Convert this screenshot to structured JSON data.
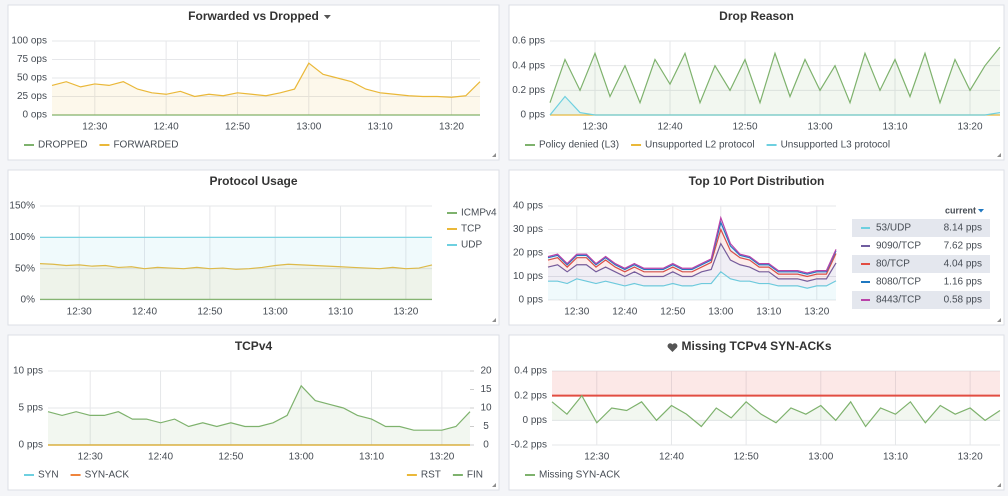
{
  "chart_data": [
    {
      "type": "line",
      "title": "Forwarded vs Dropped",
      "x": [
        "12:24",
        "12:26",
        "12:28",
        "12:30",
        "12:32",
        "12:34",
        "12:36",
        "12:38",
        "12:40",
        "12:42",
        "12:44",
        "12:46",
        "12:48",
        "12:50",
        "12:52",
        "12:54",
        "12:56",
        "12:58",
        "13:00",
        "13:02",
        "13:04",
        "13:06",
        "13:08",
        "13:10",
        "13:12",
        "13:14",
        "13:16",
        "13:18",
        "13:20",
        "13:22",
        "13:24"
      ],
      "xticks": [
        "12:30",
        "12:40",
        "12:50",
        "13:00",
        "13:10",
        "13:20"
      ],
      "ylim": [
        0,
        100
      ],
      "yticks": [
        {
          "value": 0,
          "label": "0 ops"
        },
        {
          "value": 25,
          "label": "25 ops"
        },
        {
          "value": 50,
          "label": "50 ops"
        },
        {
          "value": 75,
          "label": "75 ops"
        },
        {
          "value": 100,
          "label": "100 ops"
        }
      ],
      "grid": true,
      "legend": "bottom",
      "series": [
        {
          "name": "DROPPED",
          "color": "#7eb26d",
          "values": [
            0,
            0,
            0,
            0,
            0,
            0,
            0,
            0,
            0,
            0,
            0,
            0,
            0,
            0,
            0,
            0,
            0,
            0,
            0,
            0,
            0,
            0,
            0,
            0,
            0,
            0,
            0,
            0,
            0,
            0,
            0
          ]
        },
        {
          "name": "FORWARDED",
          "color": "#eab839",
          "values": [
            40,
            45,
            38,
            42,
            40,
            45,
            35,
            30,
            28,
            32,
            25,
            28,
            26,
            30,
            28,
            26,
            30,
            35,
            70,
            55,
            50,
            45,
            35,
            30,
            28,
            26,
            25,
            25,
            24,
            26,
            45
          ]
        }
      ]
    },
    {
      "type": "line",
      "title": "Drop Reason",
      "x": [
        "12:24",
        "12:26",
        "12:28",
        "12:30",
        "12:32",
        "12:34",
        "12:36",
        "12:38",
        "12:40",
        "12:42",
        "12:44",
        "12:46",
        "12:48",
        "12:50",
        "12:52",
        "12:54",
        "12:56",
        "12:58",
        "13:00",
        "13:02",
        "13:04",
        "13:06",
        "13:08",
        "13:10",
        "13:12",
        "13:14",
        "13:16",
        "13:18",
        "13:20",
        "13:22",
        "13:24"
      ],
      "xticks": [
        "12:30",
        "12:40",
        "12:50",
        "13:00",
        "13:10",
        "13:20"
      ],
      "ylim": [
        0,
        0.6
      ],
      "yticks": [
        {
          "value": 0,
          "label": "0 pps"
        },
        {
          "value": 0.2,
          "label": "0.2 pps"
        },
        {
          "value": 0.4,
          "label": "0.4 pps"
        },
        {
          "value": 0.6,
          "label": "0.6 pps"
        }
      ],
      "grid": true,
      "legend": "bottom",
      "series": [
        {
          "name": "Policy denied (L3)",
          "color": "#7eb26d",
          "values": [
            0.1,
            0.45,
            0.2,
            0.5,
            0.15,
            0.4,
            0.1,
            0.45,
            0.25,
            0.5,
            0.1,
            0.4,
            0.2,
            0.45,
            0.1,
            0.5,
            0.15,
            0.45,
            0.2,
            0.4,
            0.1,
            0.5,
            0.2,
            0.45,
            0.15,
            0.5,
            0.1,
            0.45,
            0.2,
            0.4,
            0.55
          ]
        },
        {
          "name": "Unsupported L2 protocol",
          "color": "#eab839",
          "values": [
            0,
            0,
            0,
            0,
            0,
            0,
            0,
            0,
            0,
            0,
            0,
            0,
            0,
            0,
            0,
            0,
            0,
            0,
            0,
            0,
            0,
            0,
            0,
            0,
            0,
            0,
            0,
            0,
            0,
            0,
            0
          ]
        },
        {
          "name": "Unsupported L3 protocol",
          "color": "#6ed0e0",
          "values": [
            0,
            0.15,
            0.02,
            0,
            0,
            0,
            0,
            0,
            0,
            0,
            0,
            0,
            0,
            0,
            0,
            0,
            0,
            0,
            0,
            0,
            0,
            0,
            0,
            0,
            0,
            0,
            0,
            0,
            0,
            0,
            0.02
          ]
        }
      ]
    },
    {
      "type": "line",
      "title": "Protocol Usage",
      "x": [
        "12:24",
        "12:26",
        "12:28",
        "12:30",
        "12:32",
        "12:34",
        "12:36",
        "12:38",
        "12:40",
        "12:42",
        "12:44",
        "12:46",
        "12:48",
        "12:50",
        "12:52",
        "12:54",
        "12:56",
        "12:58",
        "13:00",
        "13:02",
        "13:04",
        "13:06",
        "13:08",
        "13:10",
        "13:12",
        "13:14",
        "13:16",
        "13:18",
        "13:20",
        "13:22",
        "13:24"
      ],
      "xticks": [
        "12:30",
        "12:40",
        "12:50",
        "13:00",
        "13:10",
        "13:20"
      ],
      "ylim": [
        0,
        150
      ],
      "yticks": [
        {
          "value": 0,
          "label": "0%"
        },
        {
          "value": 50,
          "label": "50%"
        },
        {
          "value": 100,
          "label": "100%"
        },
        {
          "value": 150,
          "label": "150%"
        }
      ],
      "grid": true,
      "legend": "right",
      "series": [
        {
          "name": "ICMPv4",
          "color": "#7eb26d",
          "values": [
            1,
            1,
            1,
            1,
            1,
            1,
            1,
            1,
            1,
            1,
            1,
            1,
            1,
            1,
            1,
            1,
            1,
            1,
            1,
            1,
            1,
            1,
            1,
            1,
            1,
            1,
            1,
            1,
            1,
            1,
            1
          ]
        },
        {
          "name": "TCP",
          "color": "#eab839",
          "values": [
            58,
            57,
            55,
            56,
            54,
            55,
            52,
            53,
            50,
            52,
            51,
            50,
            52,
            50,
            51,
            49,
            50,
            52,
            55,
            57,
            56,
            55,
            54,
            53,
            52,
            51,
            50,
            52,
            50,
            51,
            56
          ]
        },
        {
          "name": "UDP",
          "color": "#6ed0e0",
          "values": [
            100,
            100,
            100,
            100,
            100,
            100,
            100,
            100,
            100,
            100,
            100,
            100,
            100,
            100,
            100,
            100,
            100,
            100,
            100,
            100,
            100,
            100,
            100,
            100,
            100,
            100,
            100,
            100,
            100,
            100,
            100
          ]
        }
      ]
    },
    {
      "type": "line",
      "title": "Top 10 Port Distribution",
      "stacked": true,
      "x": [
        "12:24",
        "12:26",
        "12:28",
        "12:30",
        "12:32",
        "12:34",
        "12:36",
        "12:38",
        "12:40",
        "12:42",
        "12:44",
        "12:46",
        "12:48",
        "12:50",
        "12:52",
        "12:54",
        "12:56",
        "12:58",
        "13:00",
        "13:02",
        "13:04",
        "13:06",
        "13:08",
        "13:10",
        "13:12",
        "13:14",
        "13:16",
        "13:18",
        "13:20",
        "13:22",
        "13:24"
      ],
      "xticks": [
        "12:30",
        "12:40",
        "12:50",
        "13:00",
        "13:10",
        "13:20"
      ],
      "ylim": [
        0,
        40
      ],
      "yticks": [
        {
          "value": 0,
          "label": "0 pps"
        },
        {
          "value": 10,
          "label": "10 pps"
        },
        {
          "value": 20,
          "label": "20 pps"
        },
        {
          "value": 30,
          "label": "30 pps"
        },
        {
          "value": 40,
          "label": "40 pps"
        }
      ],
      "grid": true,
      "legend": "table",
      "legend_header": "current",
      "series": [
        {
          "name": "53/UDP",
          "color": "#6ed0e0",
          "current_label": "8.14 pps",
          "values": [
            8,
            8,
            7,
            9,
            8,
            7,
            8,
            7,
            6,
            7,
            6,
            6,
            6,
            7,
            6,
            6,
            7,
            7,
            12,
            9,
            8,
            8,
            7,
            7,
            6,
            6,
            6,
            5,
            6,
            6,
            8.14
          ]
        },
        {
          "name": "9090/TCP",
          "color": "#705da0",
          "current_label": "7.62 pps",
          "values": [
            6,
            7,
            5,
            6,
            7,
            5,
            6,
            5,
            4,
            5,
            4,
            4,
            4,
            5,
            4,
            4,
            5,
            6,
            12,
            8,
            7,
            6,
            5,
            5,
            3,
            3,
            3,
            3,
            3,
            3,
            7.62
          ]
        },
        {
          "name": "80/TCP",
          "color": "#e24d42",
          "current_label": "4.04 pps",
          "values": [
            3,
            3,
            2,
            3,
            3,
            2,
            3,
            2,
            2,
            2,
            2,
            2,
            2,
            2,
            2,
            2,
            2,
            3,
            6,
            4,
            3,
            3,
            2,
            2,
            2,
            2,
            2,
            2,
            2,
            2,
            4.04
          ]
        },
        {
          "name": "8080/TCP",
          "color": "#1f78c1",
          "current_label": "1.16 pps",
          "values": [
            1,
            1,
            1,
            1,
            1,
            1,
            1,
            1,
            1,
            1,
            1,
            1,
            1,
            1,
            1,
            1,
            1,
            1,
            3,
            2,
            1,
            1,
            1,
            1,
            1,
            1,
            1,
            1,
            1,
            1,
            1.16
          ]
        },
        {
          "name": "8443/TCP",
          "color": "#ba43a9",
          "current_label": "0.58 pps",
          "values": [
            0.5,
            0.5,
            0.5,
            0.5,
            0.5,
            0.5,
            0.5,
            0.5,
            0.5,
            0.5,
            0.5,
            0.5,
            0.5,
            0.5,
            0.5,
            0.5,
            0.5,
            0.5,
            2,
            1,
            0.5,
            0.5,
            0.5,
            0.5,
            0.5,
            0.5,
            0.5,
            0.5,
            0.5,
            0.5,
            0.58
          ]
        }
      ]
    },
    {
      "type": "line",
      "title": "TCPv4",
      "x": [
        "12:24",
        "12:26",
        "12:28",
        "12:30",
        "12:32",
        "12:34",
        "12:36",
        "12:38",
        "12:40",
        "12:42",
        "12:44",
        "12:46",
        "12:48",
        "12:50",
        "12:52",
        "12:54",
        "12:56",
        "12:58",
        "13:00",
        "13:02",
        "13:04",
        "13:06",
        "13:08",
        "13:10",
        "13:12",
        "13:14",
        "13:16",
        "13:18",
        "13:20",
        "13:22",
        "13:24"
      ],
      "xticks": [
        "12:30",
        "12:40",
        "12:50",
        "13:00",
        "13:10",
        "13:20"
      ],
      "ylim": [
        0,
        10
      ],
      "yticks": [
        {
          "value": 0,
          "label": "0 pps"
        },
        {
          "value": 5,
          "label": "5 pps"
        },
        {
          "value": 10,
          "label": "10 pps"
        }
      ],
      "y2lim": [
        0,
        20
      ],
      "y2ticks": [
        0,
        5,
        10,
        15,
        20
      ],
      "grid": true,
      "legend": "bottom",
      "series": [
        {
          "name": "SYN",
          "color": "#6ed0e0",
          "values": [
            0,
            0,
            0,
            0,
            0,
            0,
            0,
            0,
            0,
            0,
            0,
            0,
            0,
            0,
            0,
            0,
            0,
            0,
            0,
            0,
            0,
            0,
            0,
            0,
            0,
            0,
            0,
            0,
            0,
            0,
            0
          ]
        },
        {
          "name": "SYN-ACK",
          "color": "#ef843c",
          "values": [
            0,
            0,
            0,
            0,
            0,
            0,
            0,
            0,
            0,
            0,
            0,
            0,
            0,
            0,
            0,
            0,
            0,
            0,
            0,
            0,
            0,
            0,
            0,
            0,
            0,
            0,
            0,
            0,
            0,
            0,
            0
          ]
        },
        {
          "name": "RST",
          "color": "#eab839",
          "axis": "y2",
          "values": [
            0,
            0,
            0,
            0,
            0,
            0,
            0,
            0,
            0,
            0,
            0,
            0,
            0,
            0,
            0,
            0,
            0,
            0,
            0,
            0,
            0,
            0,
            0,
            0,
            0,
            0,
            0,
            0,
            0,
            0,
            0
          ]
        },
        {
          "name": "FIN",
          "color": "#7eb26d",
          "axis": "y2",
          "values": [
            9,
            8,
            9,
            8,
            8,
            9,
            7,
            7,
            6,
            7,
            5,
            6,
            5,
            6,
            5,
            5,
            6,
            8,
            16,
            12,
            11,
            10,
            8,
            7,
            5,
            5,
            4,
            4,
            4,
            5,
            9
          ]
        }
      ]
    },
    {
      "type": "line",
      "title": "Missing TCPv4 SYN-ACKs",
      "x": [
        "12:24",
        "12:26",
        "12:28",
        "12:30",
        "12:32",
        "12:34",
        "12:36",
        "12:38",
        "12:40",
        "12:42",
        "12:44",
        "12:46",
        "12:48",
        "12:50",
        "12:52",
        "12:54",
        "12:56",
        "12:58",
        "13:00",
        "13:02",
        "13:04",
        "13:06",
        "13:08",
        "13:10",
        "13:12",
        "13:14",
        "13:16",
        "13:18",
        "13:20",
        "13:22",
        "13:24"
      ],
      "xticks": [
        "12:30",
        "12:40",
        "12:50",
        "13:00",
        "13:10",
        "13:20"
      ],
      "ylim": [
        -0.2,
        0.4
      ],
      "yticks": [
        {
          "value": -0.2,
          "label": "-0.2 pps"
        },
        {
          "value": 0,
          "label": "0 pps"
        },
        {
          "value": 0.2,
          "label": "0.2 pps"
        },
        {
          "value": 0.4,
          "label": "0.4 pps"
        }
      ],
      "threshold": 0.2,
      "grid": true,
      "legend": "bottom",
      "series": [
        {
          "name": "Missing SYN-ACK",
          "color": "#7eb26d",
          "values": [
            0.15,
            0.05,
            0.2,
            -0.02,
            0.1,
            0.08,
            0.15,
            0,
            0.12,
            0.05,
            -0.05,
            0.1,
            0.02,
            0.15,
            0.05,
            -0.02,
            0.1,
            0.05,
            0.12,
            0,
            0.15,
            -0.05,
            0.1,
            0.05,
            0.15,
            -0.02,
            0.12,
            0.05,
            0.1,
            0,
            0.08
          ]
        }
      ]
    }
  ]
}
